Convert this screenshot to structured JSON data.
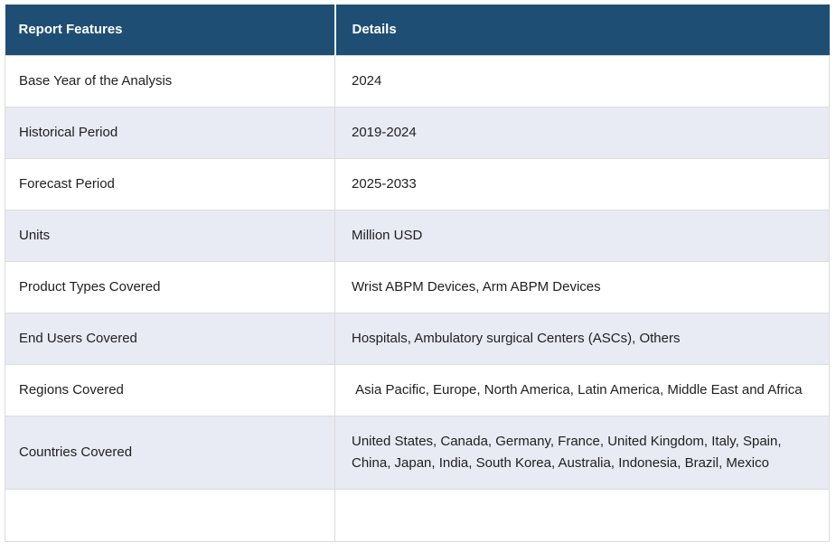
{
  "theme": {
    "header_bg": "#1F4E74",
    "header_text": "#FFFFFF",
    "row_bg": "#FFFFFF",
    "row_alt_bg": "#E8EAF4",
    "border_color": "#DCDCDC",
    "body_text": "#212121"
  },
  "table": {
    "columns": [
      {
        "label": "Report Features"
      },
      {
        "label": "Details"
      }
    ],
    "rows": [
      {
        "feature": "Base Year of the Analysis",
        "details": "2024"
      },
      {
        "feature": "Historical Period",
        "details": "2019-2024"
      },
      {
        "feature": "Forecast Period",
        "details": "2025-2033"
      },
      {
        "feature": "Units",
        "details": "Million USD"
      },
      {
        "feature": "Product Types Covered",
        "details": "Wrist ABPM Devices, Arm ABPM Devices"
      },
      {
        "feature": "End Users Covered",
        "details": "Hospitals, Ambulatory surgical Centers (ASCs), Others"
      },
      {
        "feature": "Regions Covered",
        "details": " Asia Pacific, Europe, North America, Latin America, Middle East and Africa"
      },
      {
        "feature": "Countries Covered",
        "details": "United States, Canada, Germany, France, United Kingdom, Italy, Spain, China, Japan, India, South Korea, Australia, Indonesia, Brazil, Mexico"
      },
      {
        "feature": "",
        "details": ""
      }
    ]
  }
}
